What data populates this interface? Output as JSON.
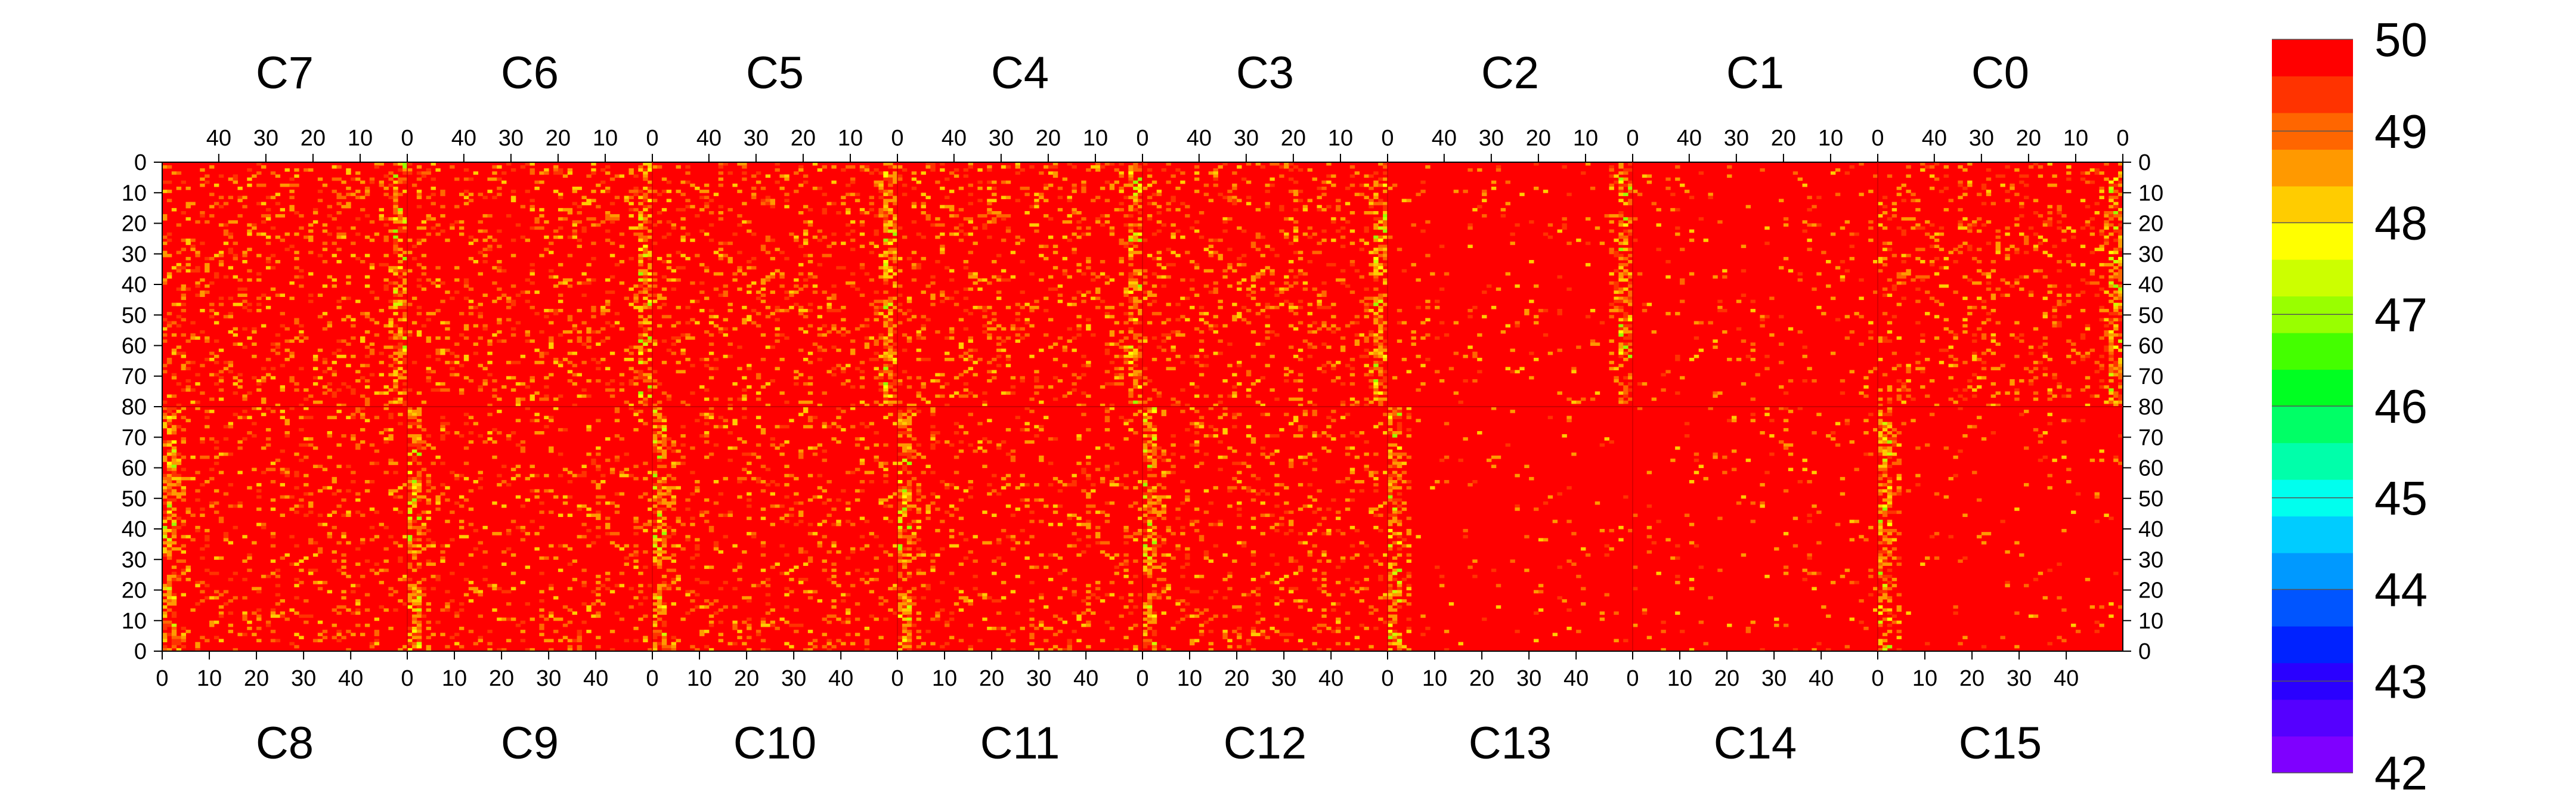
{
  "chart_data": {
    "type": "heatmap",
    "title": "",
    "xlabel": "",
    "ylabel": "",
    "top_chip_labels": [
      "C7",
      "C6",
      "C5",
      "C4",
      "C3",
      "C2",
      "C1",
      "C0"
    ],
    "bottom_chip_labels": [
      "C8",
      "C9",
      "C10",
      "C11",
      "C12",
      "C13",
      "C14",
      "C15"
    ],
    "top_x_tick_labels": [
      "40",
      "30",
      "20",
      "10",
      "0"
    ],
    "bottom_x_tick_labels": [
      "0",
      "10",
      "20",
      "30",
      "40"
    ],
    "y_tick_labels": [
      "0",
      "10",
      "20",
      "30",
      "40",
      "50",
      "60",
      "70",
      "80",
      "70",
      "60",
      "50",
      "40",
      "30",
      "20",
      "10",
      "0"
    ],
    "colorbar": {
      "min": 42,
      "max": 50,
      "tick_labels": [
        "50",
        "49",
        "48",
        "47",
        "46",
        "45",
        "44",
        "43",
        "42"
      ],
      "colors": [
        "#7f00ff",
        "#5500ff",
        "#2a00ff",
        "#0022ff",
        "#0055ff",
        "#0099ff",
        "#00ccff",
        "#00ffee",
        "#00ffaa",
        "#00ff66",
        "#00ff22",
        "#44ff00",
        "#99ff00",
        "#ccff00",
        "#ffff00",
        "#ffcc00",
        "#ff9900",
        "#ff6600",
        "#ff3300",
        "#ff0000"
      ]
    },
    "columns_per_chip": 52,
    "rows_per_half": 80,
    "base_value": 50,
    "noisy_band_chips_top": [
      "C7",
      "C6",
      "C5",
      "C4",
      "C3",
      "C2",
      "C0"
    ],
    "noisy_band_chips_bottom": [
      "C8",
      "C9",
      "C10",
      "C11",
      "C12",
      "C13",
      "C15"
    ]
  }
}
